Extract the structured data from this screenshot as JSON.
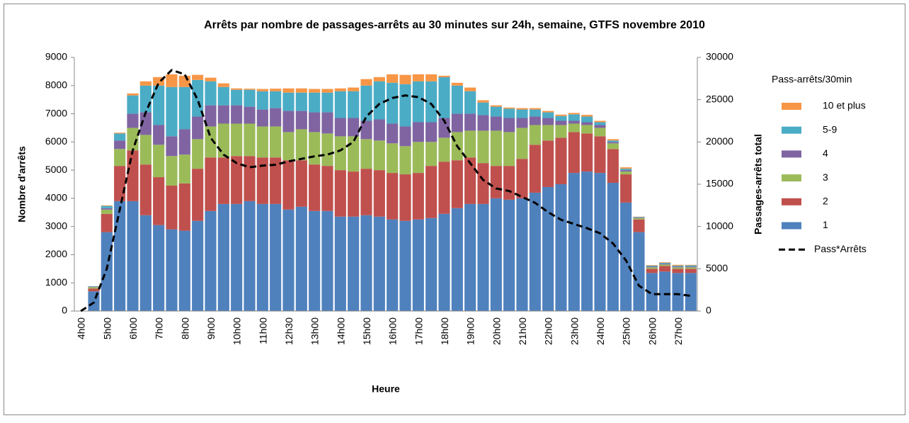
{
  "chart_data": {
    "type": "bar",
    "stacked": true,
    "title": "Arrêts par nombre de passages-arrêts au 30 minutes sur 24h,  semaine, GTFS novembre 2010",
    "xlabel": "Heure",
    "ylabel": "Nombre d'arrêts",
    "y2label": "Passages-arrêts total",
    "legend_title": "Pass-arrêts/30min",
    "legend": "right",
    "categories": [
      "4h00",
      null,
      "5h00",
      null,
      "6h00",
      null,
      "7h00",
      null,
      "8h00",
      null,
      "9h00",
      null,
      "10h00",
      null,
      "11h00",
      null,
      "12h30",
      null,
      "13h00",
      null,
      "14h00",
      null,
      "15h00",
      null,
      "16h00",
      null,
      "17h00",
      null,
      "18h00",
      null,
      "19h00",
      null,
      "20h00",
      null,
      "21h00",
      null,
      "22h00",
      null,
      "23h00",
      null,
      "24h00",
      null,
      "25h00",
      null,
      "26h00",
      null,
      "27h00",
      null
    ],
    "ylim": [
      0,
      9000
    ],
    "yticks": [
      0,
      1000,
      2000,
      3000,
      4000,
      5000,
      6000,
      7000,
      8000,
      9000
    ],
    "y2lim": [
      0,
      30000
    ],
    "y2ticks": [
      0,
      5000,
      10000,
      15000,
      20000,
      25000,
      30000
    ],
    "series": [
      {
        "name": "1",
        "color": "#4f81bd",
        "values": [
          0,
          700,
          2800,
          3900,
          3900,
          3400,
          3050,
          2900,
          2850,
          3200,
          3550,
          3800,
          3800,
          3900,
          3800,
          3800,
          3600,
          3700,
          3550,
          3550,
          3350,
          3350,
          3400,
          3350,
          3250,
          3200,
          3250,
          3300,
          3450,
          3650,
          3800,
          3800,
          4000,
          3950,
          4000,
          4200,
          4400,
          4500,
          4900,
          4950,
          4900,
          4550,
          3850,
          2800,
          1350,
          1400,
          1350,
          1350
        ]
      },
      {
        "name": "2",
        "color": "#c0504d",
        "values": [
          0,
          100,
          650,
          1250,
          1800,
          1800,
          1700,
          1550,
          1680,
          1850,
          1900,
          1650,
          1700,
          1600,
          1650,
          1650,
          1750,
          1650,
          1650,
          1600,
          1650,
          1600,
          1650,
          1650,
          1650,
          1650,
          1650,
          1850,
          1850,
          1700,
          1650,
          1450,
          1150,
          1200,
          1400,
          1700,
          1650,
          1650,
          1450,
          1350,
          1300,
          1200,
          1000,
          450,
          150,
          200,
          150,
          150
        ]
      },
      {
        "name": "3",
        "color": "#9bbb59",
        "values": [
          0,
          50,
          150,
          600,
          800,
          1050,
          1150,
          1050,
          1020,
          1050,
          1100,
          1200,
          1150,
          1150,
          1100,
          1100,
          1000,
          1100,
          1150,
          1150,
          1200,
          1250,
          1050,
          1050,
          1050,
          1000,
          1100,
          850,
          850,
          1000,
          950,
          1150,
          1250,
          1200,
          1100,
          700,
          550,
          450,
          300,
          300,
          300,
          200,
          100,
          50,
          50,
          50,
          50,
          50
        ]
      },
      {
        "name": "4",
        "color": "#8064a2",
        "values": [
          0,
          20,
          50,
          300,
          500,
          800,
          700,
          700,
          900,
          800,
          750,
          650,
          650,
          600,
          600,
          650,
          750,
          650,
          700,
          750,
          650,
          650,
          650,
          750,
          700,
          700,
          700,
          700,
          700,
          650,
          600,
          550,
          500,
          500,
          350,
          300,
          250,
          150,
          100,
          100,
          100,
          50,
          50,
          20,
          30,
          30,
          30,
          30
        ]
      },
      {
        "name": "5-9",
        "color": "#4bacc6",
        "values": [
          0,
          10,
          80,
          250,
          650,
          950,
          1400,
          1750,
          1500,
          1300,
          850,
          650,
          550,
          600,
          650,
          600,
          650,
          650,
          700,
          700,
          950,
          950,
          1250,
          1350,
          1450,
          1500,
          1450,
          1450,
          1450,
          1000,
          800,
          450,
          350,
          330,
          300,
          250,
          200,
          170,
          230,
          200,
          100,
          50,
          50,
          20,
          30,
          30,
          30,
          40
        ]
      },
      {
        "name": "10 et plus",
        "color": "#f79646",
        "values": [
          0,
          0,
          20,
          30,
          70,
          150,
          300,
          450,
          400,
          180,
          130,
          130,
          50,
          40,
          80,
          90,
          150,
          150,
          130,
          130,
          100,
          130,
          230,
          150,
          300,
          330,
          250,
          250,
          50,
          100,
          130,
          80,
          50,
          40,
          50,
          50,
          50,
          50,
          50,
          60,
          50,
          50,
          50,
          10,
          20,
          20,
          30,
          20
        ]
      },
      {
        "name": "Pass*Arrêts",
        "type": "line",
        "axis": "y2",
        "color": "#000000",
        "line_style": "dashed",
        "values": [
          0,
          1000,
          5000,
          12000,
          19000,
          23500,
          27000,
          28500,
          28000,
          25000,
          20500,
          18500,
          17500,
          17000,
          17200,
          17300,
          17700,
          18000,
          18300,
          18500,
          19000,
          20000,
          23000,
          24500,
          25200,
          25500,
          25300,
          24500,
          22500,
          19500,
          17500,
          15500,
          14500,
          14200,
          13500,
          12800,
          11700,
          10800,
          10300,
          9800,
          9200,
          8000,
          6000,
          3000,
          2000,
          2000,
          2000,
          1800
        ]
      }
    ]
  }
}
